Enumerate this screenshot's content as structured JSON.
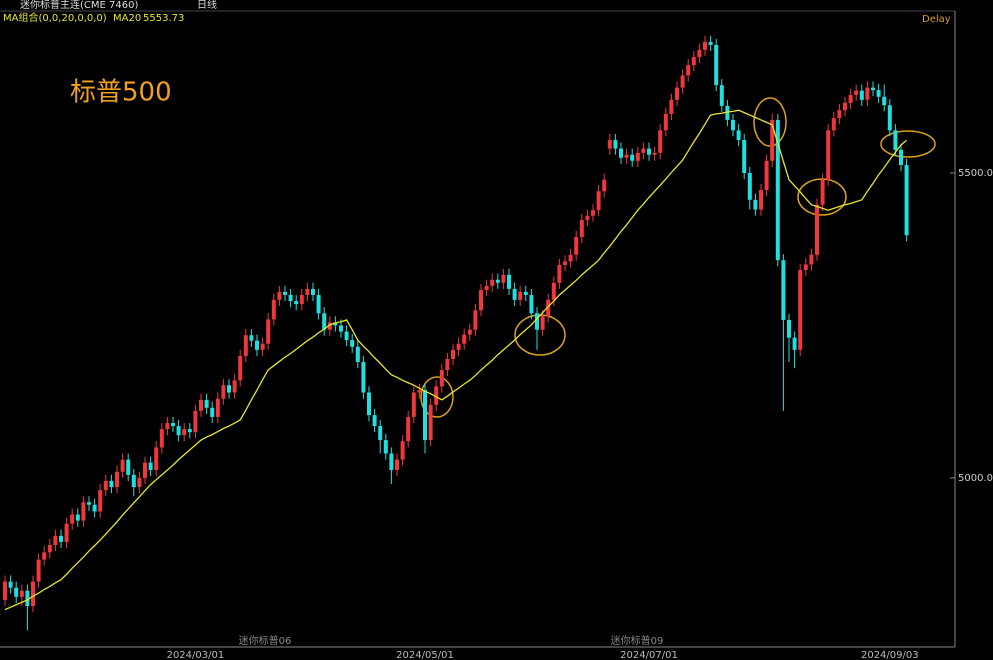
{
  "header": {
    "title": "迷你标普主连(CME 7460)",
    "period": "日线",
    "ma_group": "MA组合(0,0,20,0,0,0)",
    "status": "Delay"
  },
  "chart_data": {
    "type": "candlestick",
    "title": "标普500",
    "categories": [
      null,
      null,
      null,
      null,
      null,
      null,
      null,
      null,
      null,
      null,
      null,
      null,
      null,
      null,
      null,
      null,
      null,
      null,
      null,
      null,
      null,
      null,
      null,
      null,
      null,
      null,
      null,
      null,
      null,
      null,
      null,
      null,
      null,
      null,
      "2024/03/01",
      null,
      null,
      null,
      null,
      null,
      null,
      null,
      null,
      null,
      null,
      null,
      null,
      null,
      null,
      null,
      null,
      null,
      null,
      null,
      null,
      null,
      null,
      null,
      null,
      null,
      null,
      null,
      null,
      null,
      null,
      null,
      null,
      null,
      null,
      null,
      null,
      null,
      null,
      null,
      null,
      "2024/05/01",
      null,
      null,
      null,
      null,
      null,
      null,
      null,
      null,
      null,
      null,
      null,
      null,
      null,
      null,
      null,
      null,
      null,
      null,
      null,
      null,
      null,
      null,
      null,
      null,
      null,
      null,
      null,
      null,
      null,
      null,
      null,
      null,
      null,
      null,
      null,
      null,
      null,
      null,
      null,
      "2024/07/01",
      null,
      null,
      null,
      null,
      null,
      null,
      null,
      null,
      null,
      null,
      null,
      null,
      null,
      null,
      null,
      null,
      null,
      null,
      null,
      null,
      null,
      null,
      null,
      null,
      null,
      null,
      null,
      null,
      null,
      null,
      null,
      null,
      null,
      null,
      null,
      null,
      null,
      null,
      null,
      null,
      null,
      null,
      "2024/09/03",
      null,
      null,
      null
    ],
    "open": [
      4800,
      4830,
      4820,
      4805,
      4815,
      4790,
      4830,
      4866,
      4878,
      4890,
      4905,
      4895,
      4925,
      4940,
      4930,
      4960,
      4956,
      4945,
      4980,
      4995,
      4985,
      5010,
      5030,
      5005,
      4985,
      5000,
      5025,
      5013,
      5050,
      5080,
      5090,
      5085,
      5070,
      5080,
      5075,
      5110,
      5128,
      5115,
      5100,
      5130,
      5152,
      5140,
      5160,
      5200,
      5234,
      5225,
      5210,
      5220,
      5260,
      5292,
      5305,
      5300,
      5290,
      5285,
      5300,
      5310,
      5300,
      5270,
      5243,
      5255,
      5250,
      5240,
      5226,
      5215,
      5190,
      5140,
      5103,
      5085,
      5062,
      5040,
      5013,
      5030,
      5060,
      5100,
      5140,
      5144,
      5062,
      5120,
      5150,
      5177,
      5195,
      5210,
      5220,
      5235,
      5243,
      5275,
      5308,
      5315,
      5325,
      5320,
      5333,
      5310,
      5292,
      5305,
      5300,
      5270,
      5243,
      5265,
      5292,
      5320,
      5349,
      5355,
      5366,
      5395,
      5423,
      5430,
      5439,
      5470,
      5540,
      5554,
      5540,
      5525,
      5530,
      5520,
      5533,
      5540,
      5530,
      5533,
      5570,
      5597,
      5620,
      5640,
      5660,
      5677,
      5690,
      5702,
      5715,
      5710,
      5644,
      5610,
      5587,
      5570,
      5554,
      5500,
      5456,
      5440,
      5472,
      5520,
      5587,
      5357,
      5259,
      5230,
      5210,
      5341,
      5350,
      5366,
      5448,
      5489,
      5570,
      5590,
      5603,
      5615,
      5628,
      5635,
      5620,
      5640,
      5636,
      5625,
      5611,
      5570,
      5538,
      5513
    ],
    "high": [
      4840,
      4840,
      4830,
      4825,
      4825,
      4840,
      4876,
      4888,
      4900,
      4915,
      4915,
      4935,
      4950,
      4950,
      4970,
      4970,
      4966,
      4990,
      5005,
      5005,
      5020,
      5040,
      5040,
      5015,
      5010,
      5035,
      5035,
      5060,
      5090,
      5100,
      5100,
      5095,
      5090,
      5090,
      5120,
      5138,
      5138,
      5125,
      5140,
      5162,
      5162,
      5170,
      5210,
      5244,
      5244,
      5235,
      5230,
      5270,
      5302,
      5315,
      5315,
      5310,
      5300,
      5310,
      5320,
      5320,
      5310,
      5280,
      5265,
      5265,
      5260,
      5250,
      5236,
      5225,
      5200,
      5150,
      5113,
      5095,
      5072,
      5050,
      5040,
      5070,
      5110,
      5150,
      5154,
      5154,
      5130,
      5160,
      5187,
      5205,
      5220,
      5230,
      5245,
      5253,
      5285,
      5318,
      5325,
      5335,
      5335,
      5343,
      5343,
      5320,
      5315,
      5315,
      5310,
      5280,
      5275,
      5302,
      5330,
      5359,
      5365,
      5376,
      5405,
      5433,
      5440,
      5449,
      5480,
      5499,
      5564,
      5564,
      5550,
      5540,
      5540,
      5543,
      5550,
      5550,
      5543,
      5580,
      5607,
      5630,
      5650,
      5670,
      5687,
      5700,
      5712,
      5725,
      5725,
      5720,
      5654,
      5620,
      5597,
      5580,
      5564,
      5510,
      5466,
      5482,
      5530,
      5597,
      5597,
      5367,
      5269,
      5240,
      5351,
      5360,
      5376,
      5458,
      5499,
      5580,
      5600,
      5613,
      5625,
      5638,
      5645,
      5645,
      5650,
      5650,
      5646,
      5645,
      5621,
      5580,
      5548,
      5523
    ],
    "low": [
      4790,
      4810,
      4795,
      4790,
      4750,
      4780,
      4820,
      4856,
      4868,
      4880,
      4885,
      4885,
      4915,
      4920,
      4920,
      4946,
      4935,
      4935,
      4970,
      4975,
      4975,
      5000,
      4995,
      4970,
      4975,
      4990,
      5003,
      5003,
      5040,
      5070,
      5075,
      5060,
      5060,
      5065,
      5065,
      5100,
      5105,
      5090,
      5090,
      5120,
      5130,
      5130,
      5150,
      5190,
      5215,
      5200,
      5200,
      5210,
      5250,
      5282,
      5290,
      5280,
      5275,
      5275,
      5290,
      5290,
      5260,
      5233,
      5233,
      5240,
      5230,
      5216,
      5205,
      5180,
      5130,
      5093,
      5075,
      5040,
      5030,
      4990,
      5003,
      5020,
      5050,
      5090,
      5130,
      5040,
      5052,
      5110,
      5140,
      5167,
      5185,
      5200,
      5210,
      5225,
      5233,
      5265,
      5298,
      5305,
      5310,
      5310,
      5300,
      5282,
      5282,
      5290,
      5260,
      5210,
      5233,
      5255,
      5282,
      5310,
      5339,
      5345,
      5356,
      5385,
      5413,
      5420,
      5429,
      5460,
      5530,
      5530,
      5515,
      5515,
      5510,
      5510,
      5523,
      5520,
      5520,
      5523,
      5560,
      5587,
      5610,
      5630,
      5650,
      5667,
      5680,
      5692,
      5700,
      5634,
      5600,
      5577,
      5560,
      5544,
      5490,
      5440,
      5430,
      5430,
      5462,
      5510,
      5347,
      5110,
      5190,
      5180,
      5200,
      5331,
      5340,
      5356,
      5438,
      5479,
      5560,
      5580,
      5593,
      5605,
      5618,
      5610,
      5610,
      5626,
      5615,
      5601,
      5560,
      5528,
      5503,
      5388
    ],
    "close": [
      4830,
      4820,
      4805,
      4815,
      4790,
      4830,
      4866,
      4878,
      4890,
      4905,
      4895,
      4925,
      4940,
      4930,
      4960,
      4956,
      4945,
      4980,
      4995,
      4985,
      5010,
      5030,
      5005,
      4985,
      5000,
      5025,
      5013,
      5050,
      5080,
      5090,
      5085,
      5070,
      5080,
      5075,
      5110,
      5128,
      5115,
      5100,
      5130,
      5152,
      5140,
      5160,
      5200,
      5234,
      5225,
      5210,
      5220,
      5260,
      5292,
      5305,
      5300,
      5290,
      5285,
      5300,
      5310,
      5300,
      5270,
      5243,
      5255,
      5250,
      5240,
      5226,
      5215,
      5190,
      5140,
      5103,
      5085,
      5062,
      5040,
      5013,
      5030,
      5060,
      5100,
      5140,
      5144,
      5062,
      5120,
      5150,
      5177,
      5195,
      5210,
      5220,
      5235,
      5243,
      5275,
      5308,
      5315,
      5325,
      5320,
      5333,
      5310,
      5292,
      5305,
      5300,
      5270,
      5243,
      5265,
      5292,
      5320,
      5349,
      5355,
      5366,
      5395,
      5423,
      5430,
      5439,
      5470,
      5489,
      5554,
      5540,
      5525,
      5530,
      5520,
      5533,
      5540,
      5530,
      5533,
      5570,
      5597,
      5620,
      5640,
      5660,
      5677,
      5690,
      5702,
      5715,
      5710,
      5644,
      5610,
      5587,
      5570,
      5554,
      5500,
      5456,
      5440,
      5472,
      5520,
      5587,
      5357,
      5259,
      5230,
      5210,
      5341,
      5350,
      5366,
      5448,
      5489,
      5570,
      5590,
      5603,
      5615,
      5628,
      5635,
      5620,
      5640,
      5636,
      5625,
      5611,
      5570,
      5538,
      5513,
      5398
    ],
    "up_color": "#f0373c",
    "down_color": "#1fe0e0",
    "series": [
      {
        "name": "MA20",
        "color": "#e6e62a",
        "values": [
          4784,
          4788,
          4792,
          4796,
          4800,
          4806,
          4811,
          4817,
          4822,
          4828,
          4833,
          4842,
          4852,
          4861,
          4870,
          4880,
          4889,
          4898,
          4908,
          4918,
          4928,
          4939,
          4949,
          4959,
          4969,
          4979,
          4989,
          4997,
          5005,
          5013,
          5021,
          5030,
          5038,
          5046,
          5054,
          5062,
          5067,
          5071,
          5076,
          5081,
          5085,
          5090,
          5095,
          5111,
          5128,
          5144,
          5161,
          5177,
          5184,
          5191,
          5198,
          5204,
          5211,
          5218,
          5225,
          5231,
          5238,
          5244,
          5251,
          5254,
          5256,
          5259,
          5243,
          5226,
          5216,
          5207,
          5197,
          5188,
          5178,
          5169,
          5165,
          5160,
          5156,
          5152,
          5147,
          5142,
          5138,
          5133,
          5128,
          5134,
          5141,
          5147,
          5154,
          5160,
          5168,
          5177,
          5185,
          5193,
          5202,
          5210,
          5218,
          5226,
          5235,
          5243,
          5251,
          5261,
          5271,
          5281,
          5290,
          5300,
          5308,
          5316,
          5324,
          5333,
          5341,
          5349,
          5357,
          5369,
          5380,
          5392,
          5404,
          5415,
          5427,
          5439,
          5449,
          5460,
          5470,
          5480,
          5490,
          5501,
          5511,
          5521,
          5536,
          5551,
          5565,
          5580,
          5595,
          5597,
          5598,
          5600,
          5601,
          5603,
          5599,
          5595,
          5591,
          5587,
          5583,
          5579,
          5549,
          5519,
          5489,
          5479,
          5469,
          5458,
          5448,
          5445,
          5442,
          5439,
          5442,
          5445,
          5448,
          5450,
          5453,
          5456,
          5470,
          5483,
          5497,
          5509,
          5522,
          5534,
          5546,
          5553.73
        ]
      }
    ],
    "ylim": [
      4726,
      5764
    ],
    "yticks": [
      {
        "value": 5500,
        "label": "5500.00"
      },
      {
        "value": 5000,
        "label": "5000.00"
      }
    ],
    "annotations": [
      "迷你标普06",
      "迷你标普09"
    ]
  }
}
